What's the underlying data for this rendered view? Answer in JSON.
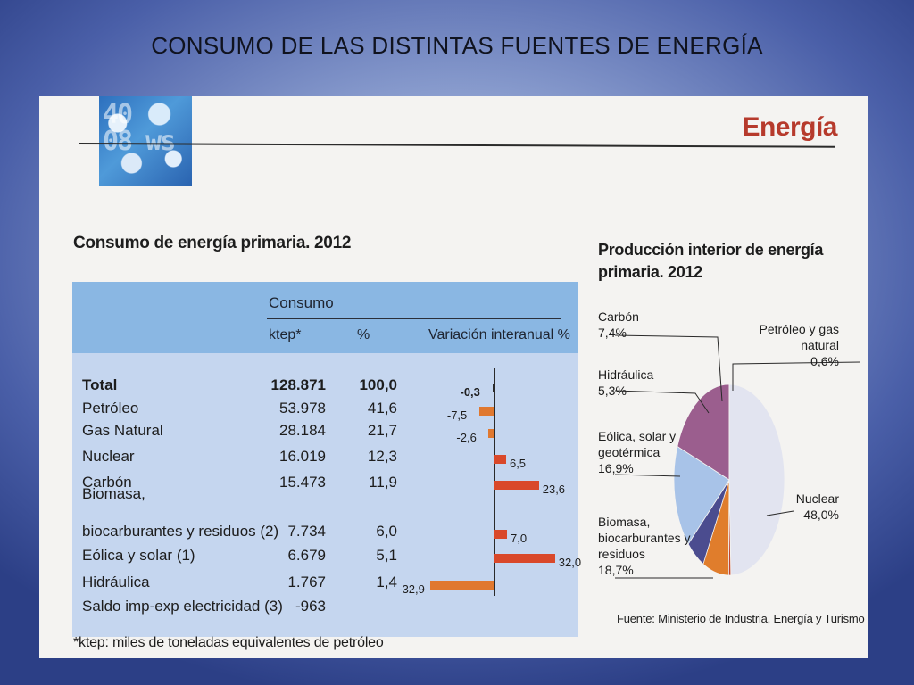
{
  "slide_title": "CONSUMO DE LAS DISTINTAS FUENTES DE ENERGÍA",
  "section_title": "Energía",
  "logo_text": "40\n08 ws",
  "colors": {
    "table_header": "#8ab7e3",
    "table_body": "#c5d6ef",
    "bar_negative": "#e0782f",
    "bar_positive": "#d9482a",
    "section_title": "#b63a2c"
  },
  "table": {
    "title": "Consumo de energía primaria. 2012",
    "consumo_label": "Consumo",
    "col_ktep": "ktep*",
    "col_pct": "%",
    "col_var": "Variación interanual %",
    "footnote": "*ktep: miles de toneladas equivalentes de petróleo",
    "biomasa_first_line": "Biomasa,",
    "rows": [
      {
        "label": "Total",
        "ktep": "128.871",
        "pct": "100,0",
        "var": "-0,3"
      },
      {
        "label": "Petróleo",
        "ktep": "53.978",
        "pct": "41,6",
        "var": "-7,5"
      },
      {
        "label": "Gas Natural",
        "ktep": "28.184",
        "pct": "21,7",
        "var": "-2,6"
      },
      {
        "label": "Nuclear",
        "ktep": "16.019",
        "pct": "12,3",
        "var": "6,5"
      },
      {
        "label": "Carbón",
        "ktep": "15.473",
        "pct": "11,9",
        "var": "23,6"
      },
      {
        "label": "biocarburantes y residuos (2)",
        "ktep": "7.734",
        "pct": "6,0",
        "var": "7,0"
      },
      {
        "label": "Eólica y solar (1)",
        "ktep": "6.679",
        "pct": "5,1",
        "var": "32,0"
      },
      {
        "label": "Hidráulica",
        "ktep": "1.767",
        "pct": "1,4",
        "var": "-32,9"
      },
      {
        "label": "Saldo imp-exp electricidad (3)",
        "ktep": "-963",
        "pct": "",
        "var": ""
      }
    ]
  },
  "pie": {
    "title": "Producción interior de energía primaria. 2012",
    "source": "Fuente: Ministerio de Industria, Energía y Turismo",
    "slices": [
      {
        "name": "Carbón",
        "value": "7,4%",
        "color": "#e07d2c"
      },
      {
        "name": "Hidráulica",
        "value": "5,3%",
        "color": "#4b4c8f"
      },
      {
        "name": "Eólica, solar y geotérmica",
        "value": "16,9%",
        "color": "#a8c3e8"
      },
      {
        "name": "Biomasa, biocarburantes y residuos",
        "value": "18,7%",
        "color": "#9b5e8e"
      },
      {
        "name": "Nuclear",
        "value": "48,0%",
        "color": "#e2e4f0"
      },
      {
        "name": "Petróleo y gas natural",
        "value": "0,6%",
        "color": "#c2452d"
      }
    ],
    "labels": {
      "carbon": [
        "Carbón",
        "7,4%"
      ],
      "hidraulica": [
        "Hidráulica",
        "5,3%"
      ],
      "eolica": [
        "Eólica, solar y",
        "geotérmica",
        "16,9%"
      ],
      "biomasa": [
        "Biomasa,",
        "biocarburantes y",
        "residuos",
        "18,7%"
      ],
      "nuclear": [
        "Nuclear",
        "48,0%"
      ],
      "petroleo": [
        "Petróleo y gas",
        "natural",
        "0,6%"
      ]
    }
  },
  "chart_data": [
    {
      "type": "bar",
      "title": "Consumo de energía primaria. 2012",
      "xlabel": "Variación interanual %",
      "categories": [
        "Total",
        "Petróleo",
        "Gas Natural",
        "Nuclear",
        "Carbón",
        "Biomasa, biocarburantes y residuos (2)",
        "Eólica y solar (1)",
        "Hidráulica",
        "Saldo imp-exp electricidad (3)"
      ],
      "ktep": [
        128871,
        53978,
        28184,
        16019,
        15473,
        7734,
        6679,
        1767,
        -963
      ],
      "pct": [
        100.0,
        41.6,
        21.7,
        12.3,
        11.9,
        6.0,
        5.1,
        1.4,
        null
      ],
      "values": [
        -0.3,
        -7.5,
        -2.6,
        6.5,
        23.6,
        7.0,
        32.0,
        -32.9,
        null
      ]
    },
    {
      "type": "pie",
      "title": "Producción interior de energía primaria. 2012",
      "categories": [
        "Carbón",
        "Hidráulica",
        "Eólica, solar y geotérmica",
        "Biomasa, biocarburantes y residuos",
        "Nuclear",
        "Petróleo y gas natural"
      ],
      "values": [
        7.4,
        5.3,
        16.9,
        18.7,
        48.0,
        0.6
      ]
    }
  ]
}
